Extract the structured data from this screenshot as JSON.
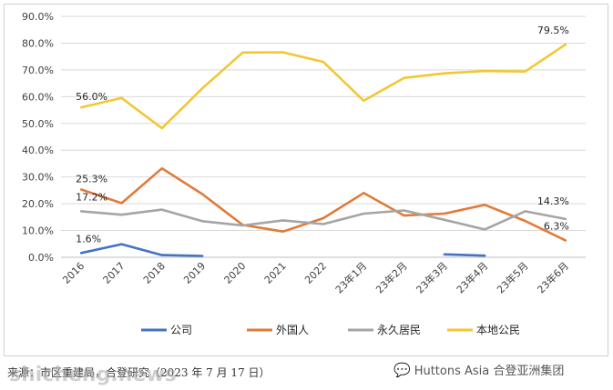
{
  "chart_data": {
    "type": "line",
    "categories": [
      "2016",
      "2017",
      "2018",
      "2019",
      "2020",
      "2021",
      "2022",
      "23年1月",
      "23年2月",
      "23年3月",
      "23年4月",
      "23年5月",
      "23年6月"
    ],
    "y_ticks": [
      "0.0%",
      "10.0%",
      "20.0%",
      "30.0%",
      "40.0%",
      "50.0%",
      "60.0%",
      "70.0%",
      "80.0%",
      "90.0%"
    ],
    "ylim": [
      0,
      90
    ],
    "grid": true,
    "legend_position": "bottom",
    "series": [
      {
        "name": "公司",
        "color": "#4472c4",
        "values": [
          1.6,
          4.9,
          0.8,
          0.5,
          null,
          null,
          null,
          null,
          null,
          1.1,
          0.6,
          null,
          null
        ]
      },
      {
        "name": "外国人",
        "color": "#e07b39",
        "values": [
          25.3,
          20.2,
          33.2,
          23.6,
          12.1,
          9.6,
          14.6,
          24.0,
          15.6,
          16.3,
          19.6,
          13.6,
          6.3
        ]
      },
      {
        "name": "永久居民",
        "color": "#a5a5a5",
        "values": [
          17.2,
          15.9,
          17.8,
          13.5,
          11.9,
          13.8,
          12.4,
          16.3,
          17.5,
          14.0,
          10.4,
          17.2,
          14.3
        ]
      },
      {
        "name": "本地公民",
        "color": "#f2c733",
        "values": [
          56.0,
          59.5,
          48.2,
          63.1,
          76.5,
          76.6,
          73.0,
          58.5,
          67.0,
          68.7,
          69.6,
          69.4,
          79.5
        ]
      }
    ],
    "data_labels": [
      {
        "series": 0,
        "index": 0,
        "text": "1.6%"
      },
      {
        "series": 1,
        "index": 0,
        "text": "25.3%"
      },
      {
        "series": 2,
        "index": 0,
        "text": "17.2%"
      },
      {
        "series": 3,
        "index": 0,
        "text": "56.0%"
      },
      {
        "series": 3,
        "index": 12,
        "text": "79.5%"
      },
      {
        "series": 2,
        "index": 12,
        "text": "14.3%"
      },
      {
        "series": 1,
        "index": 12,
        "text": "6.3%"
      }
    ]
  },
  "footer": {
    "source": "来源：市区重建局，合登研究（2023 年 7 月 17 日）",
    "brand": "Huttons Asia 合登亚洲集团",
    "brand_icon": "wechat-icon",
    "watermark": "shicheng.news"
  }
}
